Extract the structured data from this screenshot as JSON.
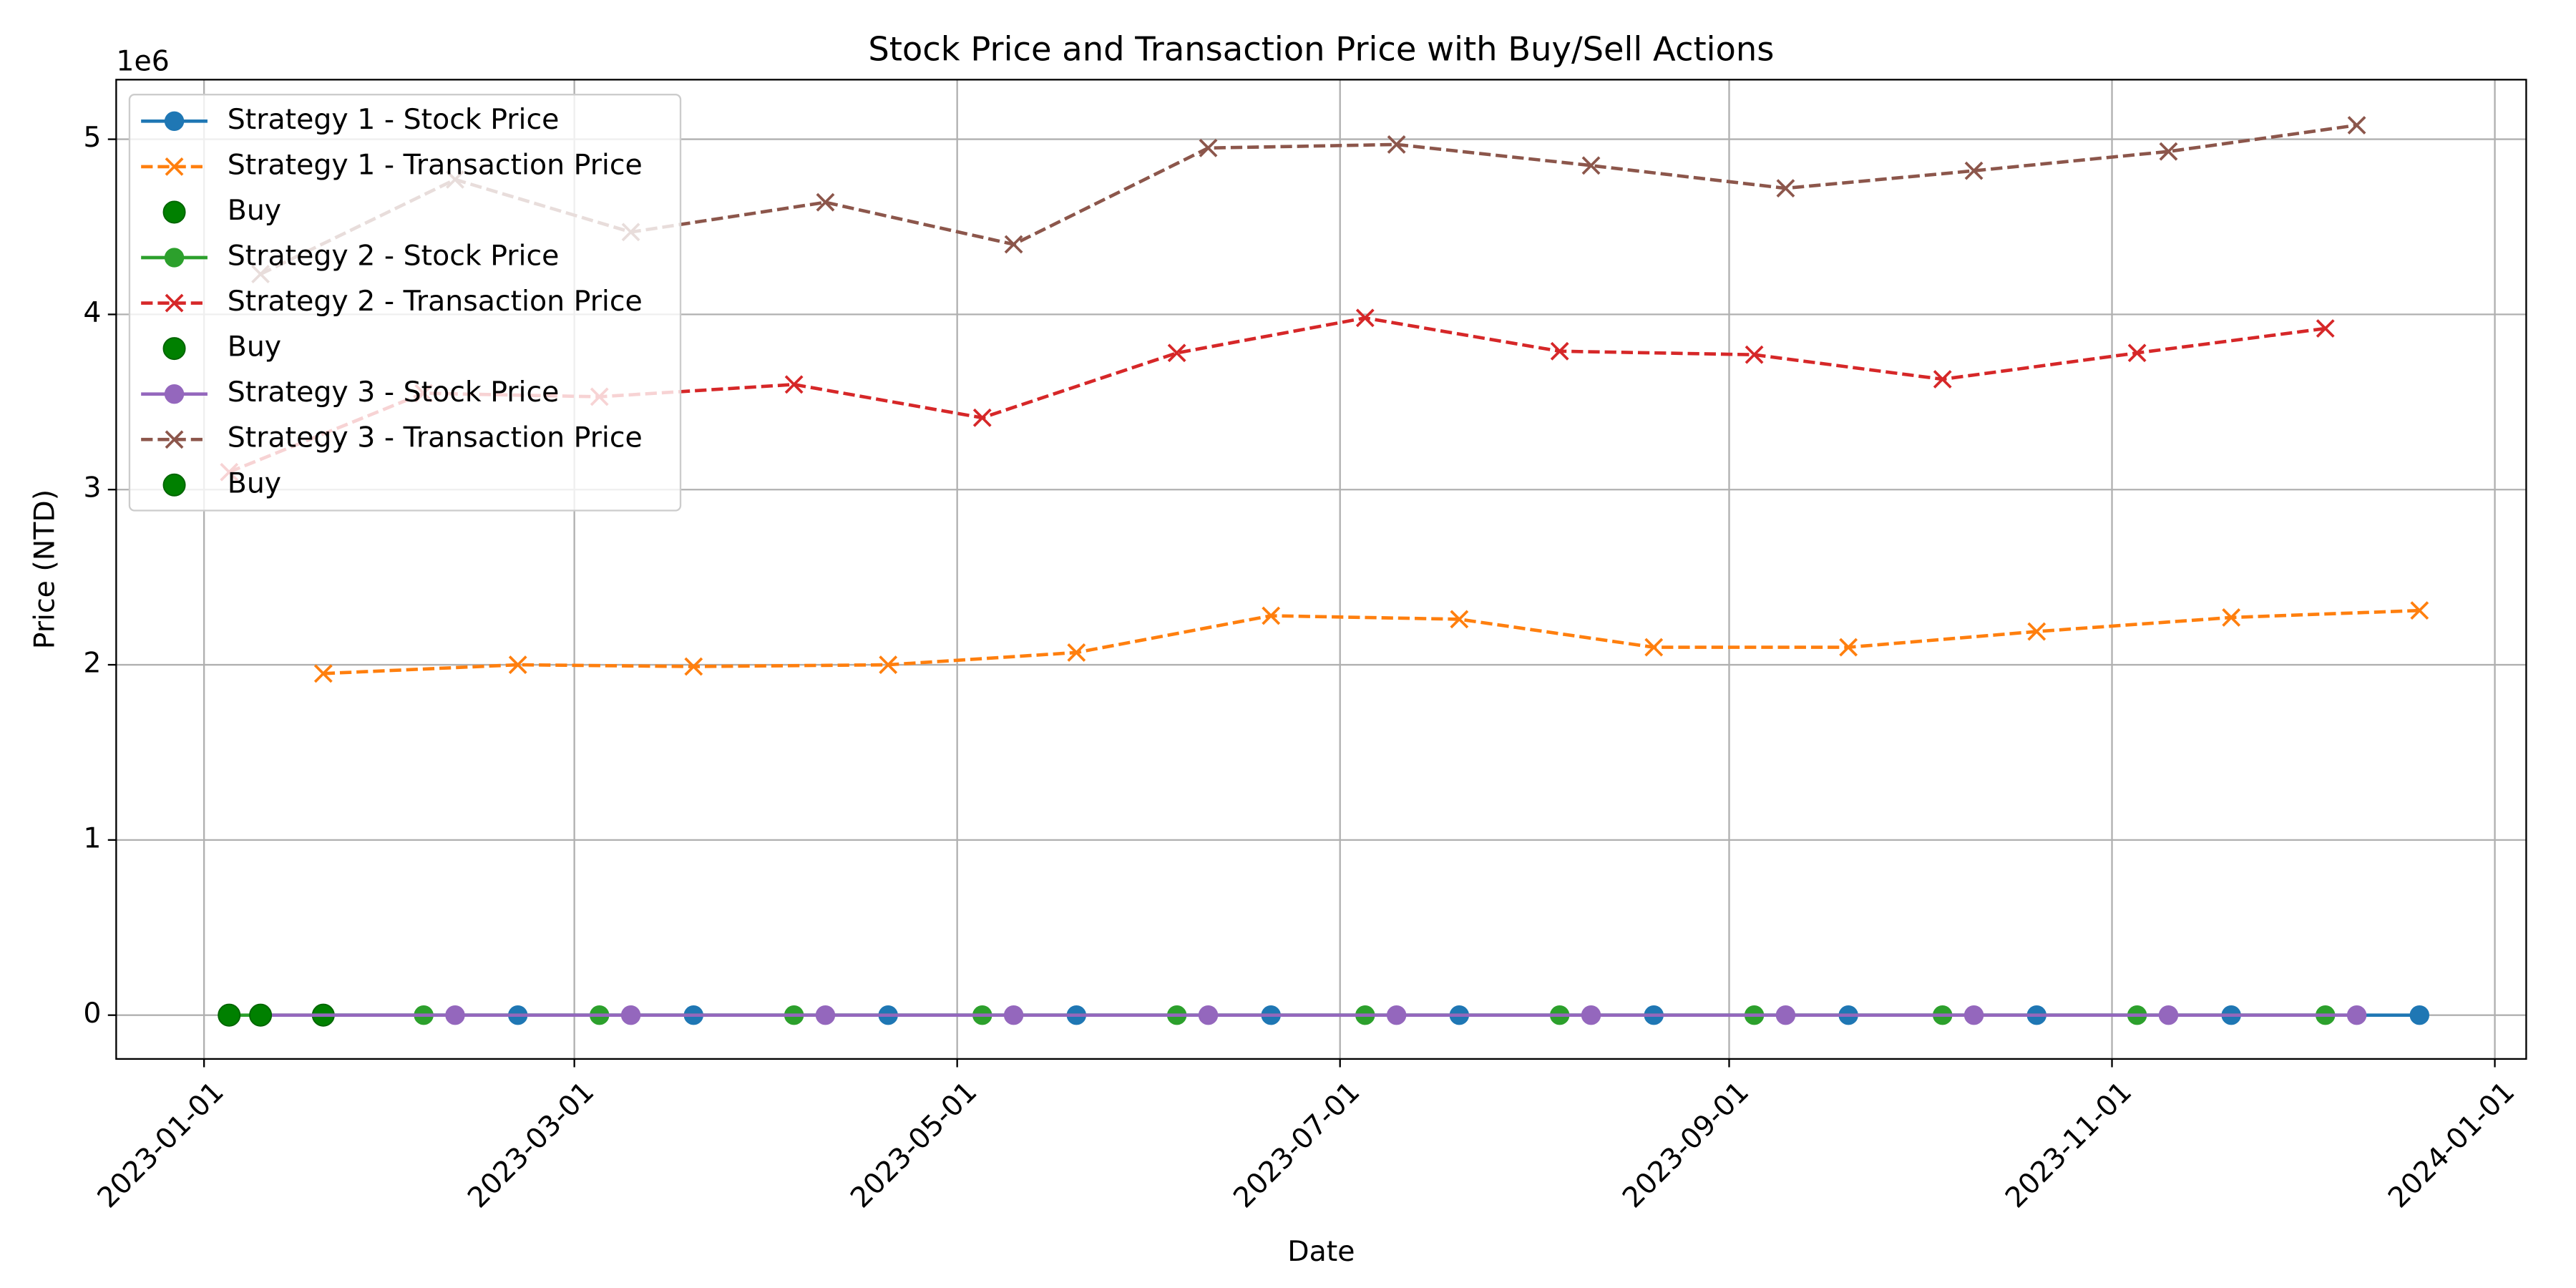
{
  "chart_data": {
    "type": "line",
    "title": "Stock Price and Transaction Price with Buy/Sell Actions",
    "x_label": "Date",
    "y_label": "Price (NTD)",
    "y_offset_label": "1e6",
    "xlim": [
      "2022-12-18",
      "2024-01-06"
    ],
    "xticks": [
      "2023-01-01",
      "2023-03-01",
      "2023-05-01",
      "2023-07-01",
      "2023-09-01",
      "2023-11-01",
      "2024-01-01"
    ],
    "ylim": [
      -250000,
      5340000
    ],
    "yticks": [
      {
        "value": 0,
        "label": "0"
      },
      {
        "value": 1000000,
        "label": "1"
      },
      {
        "value": 2000000,
        "label": "2"
      },
      {
        "value": 3000000,
        "label": "3"
      },
      {
        "value": 4000000,
        "label": "4"
      },
      {
        "value": 5000000,
        "label": "5"
      }
    ],
    "grid": true,
    "legend": "upper left",
    "series": [
      {
        "name": "Strategy 1 - Stock Price",
        "color": "#1f77b4",
        "style": "solid",
        "marker": "circle",
        "x": [
          "2023-01-20",
          "2023-02-20",
          "2023-03-20",
          "2023-04-20",
          "2023-05-20",
          "2023-06-20",
          "2023-07-20",
          "2023-08-20",
          "2023-09-20",
          "2023-10-20",
          "2023-11-20",
          "2023-12-20"
        ],
        "values": [
          0,
          0,
          0,
          0,
          0,
          0,
          0,
          0,
          0,
          0,
          0,
          0
        ]
      },
      {
        "name": "Strategy 1 - Transaction Price",
        "color": "#ff7f0e",
        "style": "dashed",
        "marker": "x",
        "x": [
          "2023-01-20",
          "2023-02-20",
          "2023-03-20",
          "2023-04-20",
          "2023-05-20",
          "2023-06-20",
          "2023-07-20",
          "2023-08-20",
          "2023-09-20",
          "2023-10-20",
          "2023-11-20",
          "2023-12-20"
        ],
        "values": [
          1950000,
          2000000,
          1990000,
          2000000,
          2070000,
          2280000,
          2260000,
          2100000,
          2100000,
          2190000,
          2270000,
          2310000
        ]
      },
      {
        "name": "Buy",
        "color": "#008000",
        "style": "none",
        "marker": "big-circle",
        "x": [
          "2023-01-20"
        ],
        "values": [
          0
        ]
      },
      {
        "name": "Strategy 2 - Stock Price",
        "color": "#2ca02c",
        "style": "solid",
        "marker": "circle",
        "x": [
          "2023-01-05",
          "2023-02-05",
          "2023-03-05",
          "2023-04-05",
          "2023-05-05",
          "2023-06-05",
          "2023-07-05",
          "2023-08-05",
          "2023-09-05",
          "2023-10-05",
          "2023-11-05",
          "2023-12-05"
        ],
        "values": [
          0,
          0,
          0,
          0,
          0,
          0,
          0,
          0,
          0,
          0,
          0,
          0
        ]
      },
      {
        "name": "Strategy 2 - Transaction Price",
        "color": "#d62728",
        "style": "dashed",
        "marker": "x",
        "x": [
          "2023-01-05",
          "2023-02-05",
          "2023-03-05",
          "2023-04-05",
          "2023-05-05",
          "2023-06-05",
          "2023-07-05",
          "2023-08-05",
          "2023-09-05",
          "2023-10-05",
          "2023-11-05",
          "2023-12-05"
        ],
        "values": [
          3100000,
          3550000,
          3530000,
          3600000,
          3410000,
          3780000,
          3980000,
          3790000,
          3770000,
          3630000,
          3780000,
          3920000
        ]
      },
      {
        "name": "Buy",
        "color": "#008000",
        "style": "none",
        "marker": "big-circle",
        "x": [
          "2023-01-05"
        ],
        "values": [
          0
        ]
      },
      {
        "name": "Strategy 3 - Stock Price",
        "color": "#9467bd",
        "style": "solid",
        "marker": "circle",
        "x": [
          "2023-01-10",
          "2023-02-10",
          "2023-03-10",
          "2023-04-10",
          "2023-05-10",
          "2023-06-10",
          "2023-07-10",
          "2023-08-10",
          "2023-09-10",
          "2023-10-10",
          "2023-11-10",
          "2023-12-10"
        ],
        "values": [
          0,
          0,
          0,
          0,
          0,
          0,
          0,
          0,
          0,
          0,
          0,
          0
        ]
      },
      {
        "name": "Strategy 3 - Transaction Price",
        "color": "#8c564b",
        "style": "dashed",
        "marker": "x",
        "x": [
          "2023-01-10",
          "2023-02-10",
          "2023-03-10",
          "2023-04-10",
          "2023-05-10",
          "2023-06-10",
          "2023-07-10",
          "2023-08-10",
          "2023-09-10",
          "2023-10-10",
          "2023-11-10",
          "2023-12-10"
        ],
        "values": [
          4230000,
          4770000,
          4470000,
          4640000,
          4400000,
          4950000,
          4970000,
          4850000,
          4720000,
          4820000,
          4930000,
          5080000
        ]
      },
      {
        "name": "Buy",
        "color": "#008000",
        "style": "none",
        "marker": "big-circle",
        "x": [
          "2023-01-10"
        ],
        "values": [
          0
        ]
      }
    ]
  }
}
